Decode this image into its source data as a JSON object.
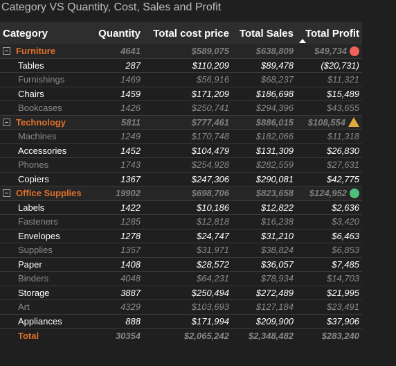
{
  "title": "Category VS Quantity, Cost, Sales and Profit",
  "colors": {
    "background": "#1f1f1f",
    "header_bg": "#2e2e2e",
    "group_accent": "#e0702a",
    "indicator_red": "#f0625a",
    "indicator_amber": "#e2a93b",
    "indicator_green": "#4cbf7a"
  },
  "headers": {
    "category": "Category",
    "quantity": "Quantity",
    "cost": "Total cost price",
    "sales": "Total Sales",
    "profit": "Total Profit",
    "sort_icon": "sort-ascending-icon"
  },
  "groups": [
    {
      "name": "Furniture",
      "quantity": "4641",
      "cost": "$589,075",
      "sales": "$638,809",
      "profit": "$49,734",
      "indicator": "red-circle",
      "items": [
        {
          "name": "Tables",
          "quantity": "287",
          "cost": "$110,209",
          "sales": "$89,478",
          "profit": "($20,731)",
          "tone": "bright"
        },
        {
          "name": "Furnishings",
          "quantity": "1469",
          "cost": "$56,916",
          "sales": "$68,237",
          "profit": "$11,321",
          "tone": "dim"
        },
        {
          "name": "Chairs",
          "quantity": "1459",
          "cost": "$171,209",
          "sales": "$186,698",
          "profit": "$15,489",
          "tone": "bright"
        },
        {
          "name": "Bookcases",
          "quantity": "1426",
          "cost": "$250,741",
          "sales": "$294,396",
          "profit": "$43,655",
          "tone": "dim"
        }
      ]
    },
    {
      "name": "Technology",
      "quantity": "5811",
      "cost": "$777,461",
      "sales": "$886,015",
      "profit": "$108,554",
      "indicator": "amber-triangle",
      "items": [
        {
          "name": "Machines",
          "quantity": "1249",
          "cost": "$170,748",
          "sales": "$182,066",
          "profit": "$11,318",
          "tone": "dim"
        },
        {
          "name": "Accessories",
          "quantity": "1452",
          "cost": "$104,479",
          "sales": "$131,309",
          "profit": "$26,830",
          "tone": "bright"
        },
        {
          "name": "Phones",
          "quantity": "1743",
          "cost": "$254,928",
          "sales": "$282,559",
          "profit": "$27,631",
          "tone": "dim"
        },
        {
          "name": "Copiers",
          "quantity": "1367",
          "cost": "$247,306",
          "sales": "$290,081",
          "profit": "$42,775",
          "tone": "bright"
        }
      ]
    },
    {
      "name": "Office Supplies",
      "quantity": "19902",
      "cost": "$698,706",
      "sales": "$823,658",
      "profit": "$124,952",
      "indicator": "green-circle",
      "items": [
        {
          "name": "Labels",
          "quantity": "1422",
          "cost": "$10,186",
          "sales": "$12,822",
          "profit": "$2,636",
          "tone": "bright"
        },
        {
          "name": "Fasteners",
          "quantity": "1285",
          "cost": "$12,818",
          "sales": "$16,238",
          "profit": "$3,420",
          "tone": "dim"
        },
        {
          "name": "Envelopes",
          "quantity": "1278",
          "cost": "$24,747",
          "sales": "$31,210",
          "profit": "$6,463",
          "tone": "bright"
        },
        {
          "name": "Supplies",
          "quantity": "1357",
          "cost": "$31,971",
          "sales": "$38,824",
          "profit": "$6,853",
          "tone": "dim"
        },
        {
          "name": "Paper",
          "quantity": "1408",
          "cost": "$28,572",
          "sales": "$36,057",
          "profit": "$7,485",
          "tone": "bright"
        },
        {
          "name": "Binders",
          "quantity": "4048",
          "cost": "$64,231",
          "sales": "$78,934",
          "profit": "$14,703",
          "tone": "dim"
        },
        {
          "name": "Storage",
          "quantity": "3887",
          "cost": "$250,494",
          "sales": "$272,489",
          "profit": "$21,995",
          "tone": "bright"
        },
        {
          "name": "Art",
          "quantity": "4329",
          "cost": "$103,693",
          "sales": "$127,184",
          "profit": "$23,491",
          "tone": "dim"
        },
        {
          "name": "Appliances",
          "quantity": "888",
          "cost": "$171,994",
          "sales": "$209,900",
          "profit": "$37,906",
          "tone": "bright"
        }
      ]
    }
  ],
  "total": {
    "name": "Total",
    "quantity": "30354",
    "cost": "$2,065,242",
    "sales": "$2,348,482",
    "profit": "$283,240"
  }
}
